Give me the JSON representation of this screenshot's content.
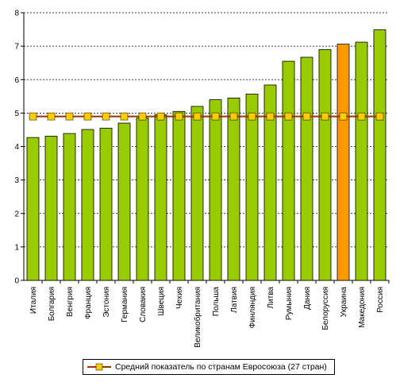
{
  "chart_data": {
    "type": "bar",
    "title": "",
    "xlabel": "",
    "ylabel": "",
    "ylim": [
      0,
      8
    ],
    "yticks": [
      0,
      1,
      2,
      3,
      4,
      5,
      6,
      7,
      8
    ],
    "grid": "horizontal dashed",
    "categories": [
      "Италия",
      "Болгария",
      "Венгрия",
      "Франция",
      "Эстония",
      "Германия",
      "Словакия",
      "Швеция",
      "Чехия",
      "Великобритания",
      "Польша",
      "Латвия",
      "Финляндия",
      "Литва",
      "Румыния",
      "Дания",
      "Белоруссия",
      "Украина",
      "Македония",
      "Россия"
    ],
    "values": [
      4.27,
      4.31,
      4.39,
      4.51,
      4.55,
      4.7,
      4.85,
      4.95,
      5.05,
      5.2,
      5.4,
      5.45,
      5.57,
      5.84,
      6.55,
      6.67,
      6.9,
      7.06,
      7.12,
      7.49
    ],
    "bar_color": "#99cc00",
    "highlight": {
      "category": "Украина",
      "color": "#ff9900"
    },
    "reference_line": {
      "name": "Средний показатель по странам Евросоюза (27 стран)",
      "value": 4.9,
      "line_color": "#993300",
      "marker_color": "#ffcc00"
    },
    "legend_position": "bottom"
  }
}
